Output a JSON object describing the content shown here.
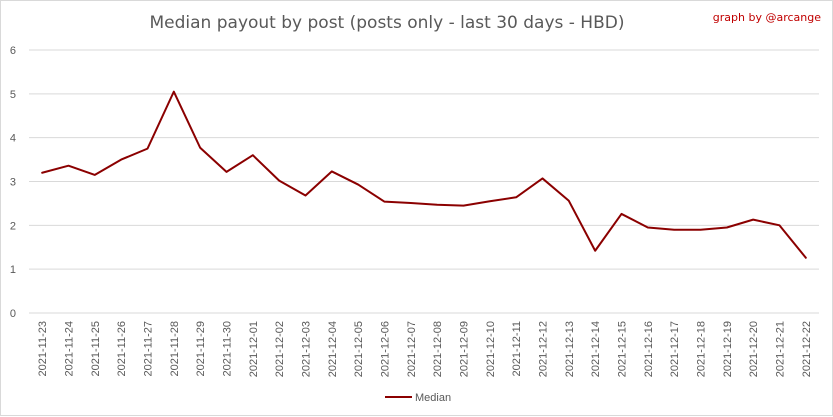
{
  "chart_data": {
    "type": "line",
    "title": "Median payout by post (posts only - last 30 days - HBD)",
    "credit": "graph by @arcange",
    "xlabel": "",
    "ylabel": "",
    "ylim": [
      0,
      6
    ],
    "yticks": [
      0,
      1,
      2,
      3,
      4,
      5,
      6
    ],
    "grid": "horizontal",
    "legend_position": "bottom",
    "colors": {
      "series": "#8b0000",
      "grid": "#d9d9d9",
      "text": "#595959",
      "credit": "#c00000"
    },
    "x": [
      "2021-11-23",
      "2021-11-24",
      "2021-11-25",
      "2021-11-26",
      "2021-11-27",
      "2021-11-28",
      "2021-11-29",
      "2021-11-30",
      "2021-12-01",
      "2021-12-02",
      "2021-12-03",
      "2021-12-04",
      "2021-12-05",
      "2021-12-06",
      "2021-12-07",
      "2021-12-08",
      "2021-12-09",
      "2021-12-10",
      "2021-12-11",
      "2021-12-12",
      "2021-12-13",
      "2021-12-14",
      "2021-12-15",
      "2021-12-16",
      "2021-12-17",
      "2021-12-18",
      "2021-12-19",
      "2021-12-20",
      "2021-12-21",
      "2021-12-22"
    ],
    "series": [
      {
        "name": "Median",
        "values": [
          3.2,
          3.36,
          3.15,
          3.5,
          3.75,
          5.05,
          3.77,
          3.22,
          3.6,
          3.02,
          2.68,
          3.23,
          2.93,
          2.54,
          2.51,
          2.47,
          2.45,
          2.55,
          2.64,
          3.07,
          2.56,
          1.42,
          2.26,
          1.95,
          1.9,
          1.9,
          1.95,
          2.13,
          2.0,
          1.26
        ]
      }
    ]
  }
}
